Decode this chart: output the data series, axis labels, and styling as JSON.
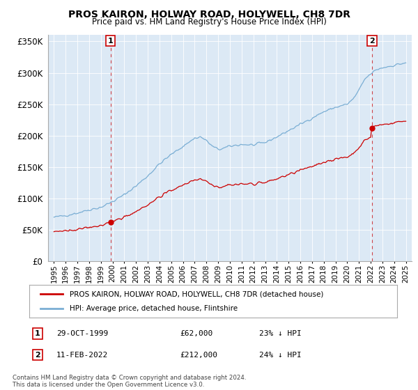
{
  "title": "PROS KAIRON, HOLWAY ROAD, HOLYWELL, CH8 7DR",
  "subtitle": "Price paid vs. HM Land Registry's House Price Index (HPI)",
  "legend_label_red": "PROS KAIRON, HOLWAY ROAD, HOLYWELL, CH8 7DR (detached house)",
  "legend_label_blue": "HPI: Average price, detached house, Flintshire",
  "annotation1_date": "29-OCT-1999",
  "annotation1_price": "£62,000",
  "annotation1_hpi": "23% ↓ HPI",
  "annotation1_year": 1999.83,
  "annotation1_value": 62000,
  "annotation2_date": "11-FEB-2022",
  "annotation2_price": "£212,000",
  "annotation2_hpi": "24% ↓ HPI",
  "annotation2_year": 2022.12,
  "annotation2_value": 212000,
  "footer": "Contains HM Land Registry data © Crown copyright and database right 2024.\nThis data is licensed under the Open Government Licence v3.0.",
  "ylim": [
    0,
    360000
  ],
  "yticks": [
    0,
    50000,
    100000,
    150000,
    200000,
    250000,
    300000,
    350000
  ],
  "plot_bg_color": "#dce9f5",
  "fig_bg_color": "#ffffff",
  "grid_color": "#ffffff",
  "red_color": "#cc0000",
  "blue_color": "#7aaed4",
  "hpi_ratio": 0.77
}
